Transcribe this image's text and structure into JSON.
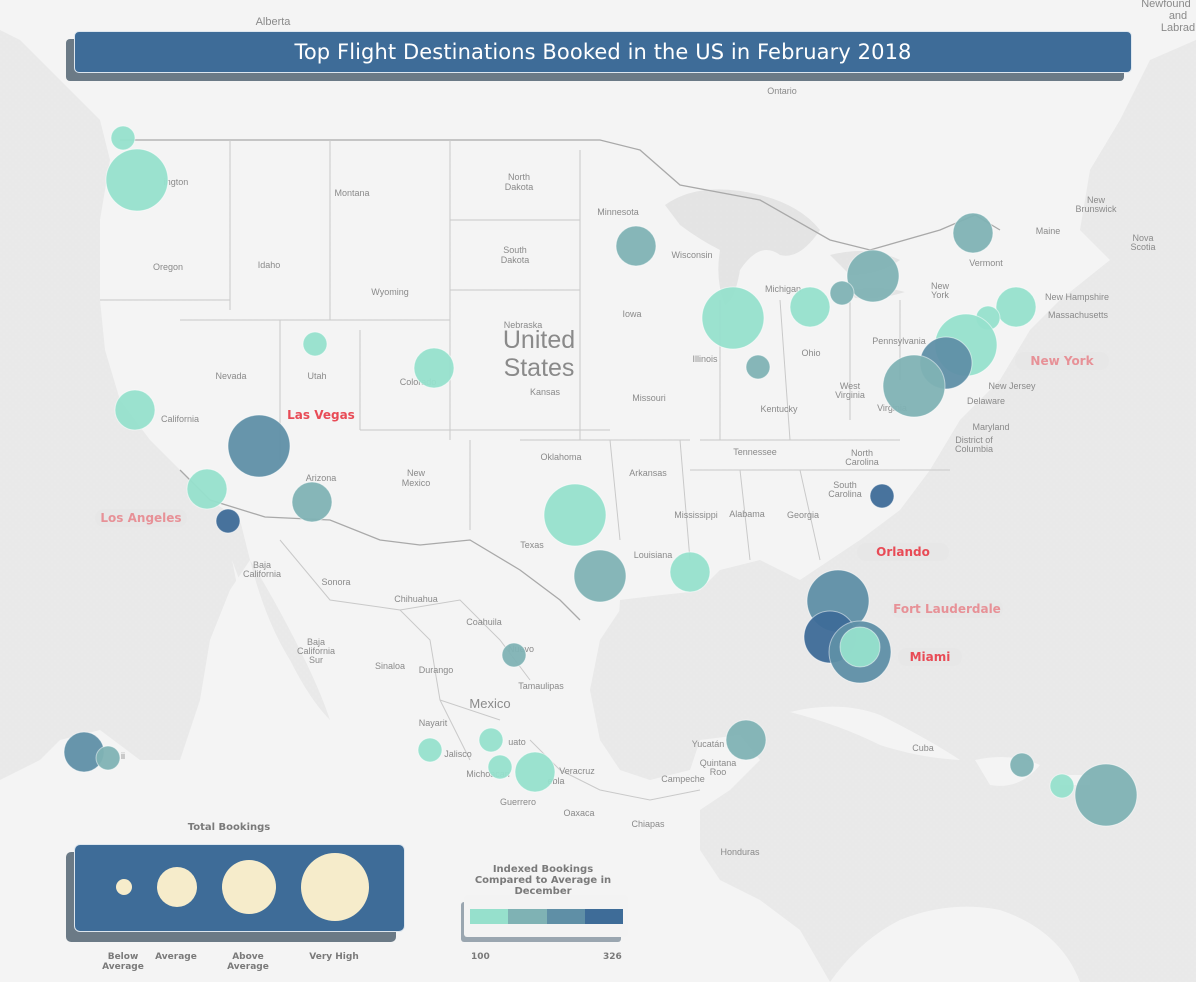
{
  "title": "Top Flight Destinations Booked in the US in February 2018",
  "colors": {
    "water": "#e9e9e9",
    "land": "#f4f4f4",
    "low": "#96e0cc",
    "mid_low": "#7fb2b4",
    "mid_high": "#5f8fa6",
    "high": "#3e6c98",
    "size_legend_fill": "#f6eccb",
    "city_text": "#e84b56",
    "city_pill": "#e7e7e7"
  },
  "geo_labels": [
    {
      "text": "Alberta",
      "cls": "small"
    },
    {
      "text": "Newfound",
      "cls": "small"
    },
    {
      "text": "and",
      "cls": "small"
    },
    {
      "text": "Labrad",
      "cls": "small"
    },
    {
      "text": "Ontario",
      "cls": "tiny"
    },
    {
      "text": "ington",
      "cls": "tiny"
    },
    {
      "text": "Montana",
      "cls": "tiny"
    },
    {
      "text": "North",
      "cls": "tiny"
    },
    {
      "text": "Dakota",
      "cls": "tiny"
    },
    {
      "text": "Minnesota",
      "cls": "tiny"
    },
    {
      "text": "South",
      "cls": "tiny"
    },
    {
      "text": "Dakota",
      "cls": "tiny"
    },
    {
      "text": "Wisconsin",
      "cls": "tiny"
    },
    {
      "text": "Oregon",
      "cls": "tiny"
    },
    {
      "text": "Idaho",
      "cls": "tiny"
    },
    {
      "text": "Wyoming",
      "cls": "tiny"
    },
    {
      "text": "Michigan",
      "cls": "tiny"
    },
    {
      "text": "Vermont",
      "cls": "tiny"
    },
    {
      "text": "Maine",
      "cls": "tiny"
    },
    {
      "text": "New",
      "cls": "tiny"
    },
    {
      "text": "Brunswick",
      "cls": "tiny"
    },
    {
      "text": "Nova",
      "cls": "tiny"
    },
    {
      "text": "Scotia",
      "cls": "tiny"
    },
    {
      "text": "New",
      "cls": "tiny"
    },
    {
      "text": "York",
      "cls": "tiny"
    },
    {
      "text": "New Hampshire",
      "cls": "tiny"
    },
    {
      "text": "Massachusetts",
      "cls": "tiny"
    },
    {
      "text": "Nebraska",
      "cls": "tiny"
    },
    {
      "text": "Iowa",
      "cls": "tiny"
    },
    {
      "text": "United",
      "cls": "country"
    },
    {
      "text": "States",
      "cls": "country"
    },
    {
      "text": "Pennsylvania",
      "cls": "tiny"
    },
    {
      "text": "Nevada",
      "cls": "tiny"
    },
    {
      "text": "Utah",
      "cls": "tiny"
    },
    {
      "text": "Colorado",
      "cls": "tiny"
    },
    {
      "text": "Illinois",
      "cls": "tiny"
    },
    {
      "text": "Ohio",
      "cls": "tiny"
    },
    {
      "text": "Kansas",
      "cls": "tiny"
    },
    {
      "text": "Missouri",
      "cls": "tiny"
    },
    {
      "text": "West",
      "cls": "tiny"
    },
    {
      "text": "Virginia",
      "cls": "tiny"
    },
    {
      "text": "Virginia",
      "cls": "tiny"
    },
    {
      "text": "New Jersey",
      "cls": "tiny"
    },
    {
      "text": "Delaware",
      "cls": "tiny"
    },
    {
      "text": "Kentucky",
      "cls": "tiny"
    },
    {
      "text": "Maryland",
      "cls": "tiny"
    },
    {
      "text": "District of",
      "cls": "tiny"
    },
    {
      "text": "Columbia",
      "cls": "tiny"
    },
    {
      "text": "California",
      "cls": "tiny"
    },
    {
      "text": "Oklahoma",
      "cls": "tiny"
    },
    {
      "text": "Tennessee",
      "cls": "tiny"
    },
    {
      "text": "North",
      "cls": "tiny"
    },
    {
      "text": "Carolina",
      "cls": "tiny"
    },
    {
      "text": "Arizona",
      "cls": "tiny"
    },
    {
      "text": "New",
      "cls": "tiny"
    },
    {
      "text": "Mexico",
      "cls": "tiny"
    },
    {
      "text": "Arkansas",
      "cls": "tiny"
    },
    {
      "text": "South",
      "cls": "tiny"
    },
    {
      "text": "Carolina",
      "cls": "tiny"
    },
    {
      "text": "Mississippi",
      "cls": "tiny"
    },
    {
      "text": "Alabama",
      "cls": "tiny"
    },
    {
      "text": "Georgia",
      "cls": "tiny"
    },
    {
      "text": "Texas",
      "cls": "tiny"
    },
    {
      "text": "Louisiana",
      "cls": "tiny"
    },
    {
      "text": "Baja",
      "cls": "tiny"
    },
    {
      "text": "California",
      "cls": "tiny"
    },
    {
      "text": "Sonora",
      "cls": "tiny"
    },
    {
      "text": "Chihuahua",
      "cls": "tiny"
    },
    {
      "text": "Coahuila",
      "cls": "tiny"
    },
    {
      "text": "Baja",
      "cls": "tiny"
    },
    {
      "text": "California",
      "cls": "tiny"
    },
    {
      "text": "Sur",
      "cls": "tiny"
    },
    {
      "text": "Sinaloa",
      "cls": "tiny"
    },
    {
      "text": "Durango",
      "cls": "tiny"
    },
    {
      "text": "Nuevo",
      "cls": "tiny"
    },
    {
      "text": "Tamaulipas",
      "cls": "tiny"
    },
    {
      "text": "Mexico",
      "cls": "mid"
    },
    {
      "text": "Nayarit",
      "cls": "tiny"
    },
    {
      "text": "Jalisco",
      "cls": "tiny"
    },
    {
      "text": "uato",
      "cls": "tiny"
    },
    {
      "text": "Michoacan",
      "cls": "tiny"
    },
    {
      "text": "Veracruz",
      "cls": "tiny"
    },
    {
      "text": "ebla",
      "cls": "tiny"
    },
    {
      "text": "Guerrero",
      "cls": "tiny"
    },
    {
      "text": "Oaxaca",
      "cls": "tiny"
    },
    {
      "text": "Chiapas",
      "cls": "tiny"
    },
    {
      "text": "Yucatán",
      "cls": "tiny"
    },
    {
      "text": "Quintana",
      "cls": "tiny"
    },
    {
      "text": "Roo",
      "cls": "tiny"
    },
    {
      "text": "Campeche",
      "cls": "tiny"
    },
    {
      "text": "Cuba",
      "cls": "tiny"
    },
    {
      "text": "Honduras",
      "cls": "tiny"
    },
    {
      "text": "ii",
      "cls": "tiny"
    }
  ],
  "city_labels": [
    {
      "text": "Las Vegas",
      "style": "plain"
    },
    {
      "text": "Los Angeles",
      "style": "pill-faded"
    },
    {
      "text": "New York",
      "style": "pill-faded"
    },
    {
      "text": "Orlando",
      "style": "pill"
    },
    {
      "text": "Fort Lauderdale",
      "style": "pill-faded"
    },
    {
      "text": "Miami",
      "style": "pill"
    }
  ],
  "destinations": [
    {
      "region": "Bellingham area",
      "size": "Below Average",
      "index_level": "low"
    },
    {
      "region": "Washington",
      "size": "Very High",
      "index_level": "low"
    },
    {
      "region": "Minnesota",
      "size": "Average",
      "index_level": "mid_low"
    },
    {
      "region": "Vermont",
      "size": "Average",
      "index_level": "mid_low"
    },
    {
      "region": "Ontario",
      "size": "Above Average",
      "index_level": "mid_low"
    },
    {
      "region": "Michigan",
      "size": "Below Average",
      "index_level": "mid_low"
    },
    {
      "region": "Michigan",
      "size": "Average",
      "index_level": "low"
    },
    {
      "region": "Chicago",
      "size": "Very High",
      "index_level": "low"
    },
    {
      "region": "Indiana",
      "size": "Below Average",
      "index_level": "mid_low"
    },
    {
      "region": "Massachusetts",
      "size": "Average",
      "index_level": "low"
    },
    {
      "region": "New Hampshire",
      "size": "Below Average",
      "index_level": "low"
    },
    {
      "region": "New York",
      "size": "Very High",
      "index_level": "low"
    },
    {
      "region": "New Jersey",
      "size": "Above Average",
      "index_level": "mid_high"
    },
    {
      "region": "Virginia",
      "size": "Very High",
      "index_level": "mid_low"
    },
    {
      "region": "Utah",
      "size": "Below Average",
      "index_level": "low"
    },
    {
      "region": "Colorado",
      "size": "Average",
      "index_level": "low"
    },
    {
      "region": "California",
      "size": "Average",
      "index_level": "low"
    },
    {
      "region": "Las Vegas",
      "size": "Very High",
      "index_level": "mid_high"
    },
    {
      "region": "California South",
      "size": "Average",
      "index_level": "low"
    },
    {
      "region": "Los Angeles",
      "size": "Below Average",
      "index_level": "high"
    },
    {
      "region": "Arizona",
      "size": "Average",
      "index_level": "mid_low"
    },
    {
      "region": "Texas",
      "size": "Very High",
      "index_level": "low"
    },
    {
      "region": "Houston",
      "size": "Above Average",
      "index_level": "mid_low"
    },
    {
      "region": "Louisiana",
      "size": "Average",
      "index_level": "low"
    },
    {
      "region": "South Carolina",
      "size": "Below Average",
      "index_level": "high"
    },
    {
      "region": "Orlando",
      "size": "Very High",
      "index_level": "mid_high"
    },
    {
      "region": "Fort Lauderdale",
      "size": "Above Average",
      "index_level": "high"
    },
    {
      "region": "Miami",
      "size": "Very High",
      "index_level": "mid_high"
    },
    {
      "region": "Miami area",
      "size": "Average",
      "index_level": "low"
    },
    {
      "region": "Monterrey",
      "size": "Below Average",
      "index_level": "mid_low"
    },
    {
      "region": "Puerto Vallarta",
      "size": "Below Average",
      "index_level": "low"
    },
    {
      "region": "Guadalajara",
      "size": "Below Average",
      "index_level": "low"
    },
    {
      "region": "Michoacan",
      "size": "Below Average",
      "index_level": "low"
    },
    {
      "region": "Mexico City",
      "size": "Average",
      "index_level": "low"
    },
    {
      "region": "Cancun",
      "size": "Average",
      "index_level": "mid_low"
    },
    {
      "region": "Dominican Republic",
      "size": "Below Average",
      "index_level": "mid_low"
    },
    {
      "region": "Puerto Rico West",
      "size": "Below Average",
      "index_level": "low"
    },
    {
      "region": "Puerto Rico",
      "size": "Very High",
      "index_level": "mid_low"
    },
    {
      "region": "Hawaii",
      "size": "Average",
      "index_level": "mid_high"
    },
    {
      "region": "Hawaii East",
      "size": "Below Average",
      "index_level": "mid_low"
    }
  ],
  "size_legend": {
    "title": "Total Bookings",
    "items": [
      {
        "label": "Below Average",
        "level": "Below Average"
      },
      {
        "label": "Average",
        "level": "Average"
      },
      {
        "label": "Above Average",
        "level": "Above Average"
      },
      {
        "label": "Very High",
        "level": "Very High"
      }
    ]
  },
  "color_legend": {
    "title": "Indexed Bookings Compared to Average in December",
    "min_label": "100",
    "max_label": "326",
    "steps": [
      "low",
      "mid_low",
      "mid_high",
      "high"
    ]
  }
}
